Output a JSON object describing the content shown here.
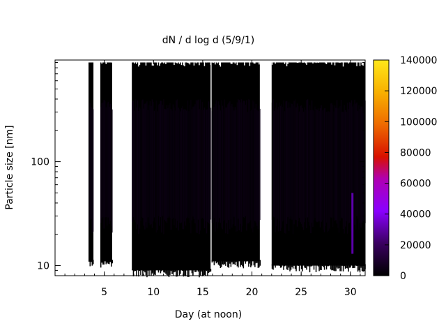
{
  "chart_data": {
    "type": "heatmap",
    "title": "dN / d log d (5/9/1)",
    "xlabel": "Day (at noon)",
    "ylabel": "Particle size [nm]",
    "xlim": [
      0,
      31.5
    ],
    "ylim": [
      8,
      950
    ],
    "yscale": "log",
    "grid": false,
    "x_ticks": [
      5,
      10,
      15,
      20,
      25,
      30
    ],
    "y_ticks": [
      10,
      100
    ],
    "colorbar": {
      "min": 0,
      "max": 140000,
      "ticks": [
        0,
        20000,
        40000,
        60000,
        80000,
        100000,
        120000,
        140000
      ],
      "palette": "black-purple-red-yellow"
    },
    "data_coverage": [
      {
        "x_start": 3.4,
        "x_end": 3.9,
        "size_min": 11,
        "size_max": 900
      },
      {
        "x_start": 4.6,
        "x_end": 5.8,
        "size_min": 11,
        "size_max": 900
      },
      {
        "x_start": 7.8,
        "x_end": 15.8,
        "size_min": 9,
        "size_max": 900
      },
      {
        "x_start": 15.9,
        "x_end": 20.8,
        "size_min": 11,
        "size_max": 900
      },
      {
        "x_start": 22.0,
        "x_end": 31.5,
        "size_min": 10,
        "size_max": 900
      }
    ],
    "typical_concentration": 5000,
    "peak_concentration": 40000
  }
}
